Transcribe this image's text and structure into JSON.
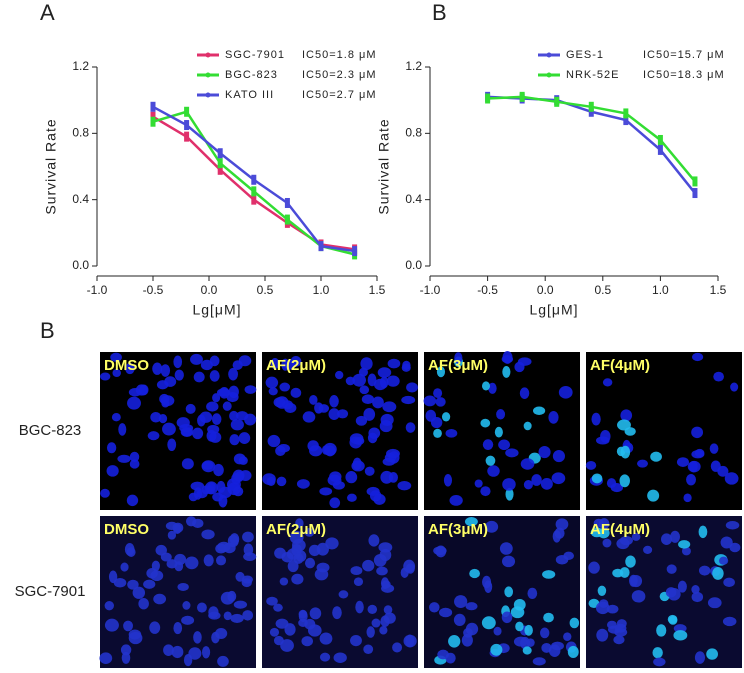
{
  "chart_data": [
    {
      "type": "line",
      "panel": "A",
      "x_label": "Lg[μM]",
      "y_label": "Survival Rate",
      "x": [
        -0.5,
        -0.2,
        0.1,
        0.4,
        0.7,
        1.0,
        1.3
      ],
      "series": [
        {
          "name": "SGC-7901",
          "label": "IC50=1.8 μM",
          "color": "#e0306b",
          "values": [
            0.9,
            0.78,
            0.58,
            0.4,
            0.26,
            0.13,
            0.1
          ]
        },
        {
          "name": "BGC-823",
          "label": "IC50=2.3 μM",
          "color": "#33dd33",
          "values": [
            0.87,
            0.93,
            0.62,
            0.45,
            0.28,
            0.12,
            0.07
          ]
        },
        {
          "name": "KATO III",
          "label": "IC50=2.7 μM",
          "color": "#4b4bd8",
          "values": [
            0.96,
            0.85,
            0.68,
            0.52,
            0.38,
            0.12,
            0.09
          ]
        }
      ],
      "xlim": [
        -1.0,
        1.5
      ],
      "xticks": [
        {
          "value": -1.0,
          "label": "-1.0"
        },
        -0.5,
        {
          "value": 0.0,
          "label": "0.0"
        },
        0.5,
        {
          "value": 1.0,
          "label": "1.0"
        },
        1.5
      ],
      "ylim": [
        0,
        1.2
      ],
      "yticks": [
        {
          "value": 0,
          "label": "0.0"
        },
        0.4,
        0.8,
        1.2
      ],
      "legend": "upper right"
    },
    {
      "type": "line",
      "panel": "B",
      "x_label": "Lg[μM]",
      "y_label": "Survival Rate",
      "x": [
        -0.5,
        -0.2,
        0.1,
        0.4,
        0.7,
        1.0,
        1.3
      ],
      "series": [
        {
          "name": "GES-1",
          "label": "IC50=15.7 μM",
          "color": "#4b4bd8",
          "values": [
            1.02,
            1.01,
            1.0,
            0.93,
            0.88,
            0.7,
            0.44
          ]
        },
        {
          "name": "NRK-52E",
          "label": "IC50=18.3 μM",
          "color": "#33dd33",
          "values": [
            1.01,
            1.02,
            0.99,
            0.96,
            0.92,
            0.76,
            0.51
          ]
        }
      ],
      "xlim": [
        -1.0,
        1.5
      ],
      "xticks": [
        {
          "value": -1.0,
          "label": "-1.0"
        },
        -0.5,
        {
          "value": 0.0,
          "label": "0.0"
        },
        0.5,
        {
          "value": 1.0,
          "label": "1.0"
        },
        1.5
      ],
      "ylim": [
        0,
        1.2
      ],
      "yticks": [
        {
          "value": 0,
          "label": "0.0"
        },
        0.4,
        0.8,
        1.2
      ],
      "legend": "upper right"
    }
  ],
  "image_grid": {
    "panel": "B",
    "rows": [
      {
        "label": "BGC-823",
        "cells": [
          "DMSO",
          "AF(2μM)",
          "AF(3μM)",
          "AF(4μM)"
        ]
      },
      {
        "label": "SGC-7901",
        "cells": [
          "DMSO",
          "AF(2μM)",
          "AF(3μM)",
          "AF(4μM)"
        ]
      }
    ]
  }
}
